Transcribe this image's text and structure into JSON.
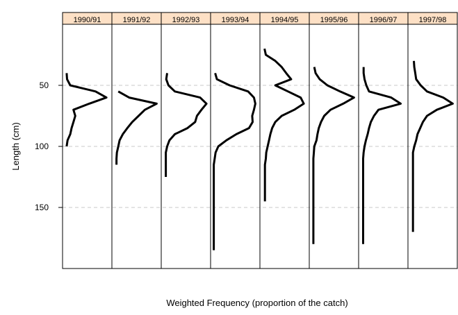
{
  "chart_data": {
    "type": "line",
    "x_label": "Weighted Frequency (proportion of the catch)",
    "y_label": "Length (cm)",
    "y_reversed": true,
    "ylim": [
      0,
      200
    ],
    "yticks": [
      50,
      100,
      150
    ],
    "xlim": [
      0,
      0.1
    ],
    "grid": true,
    "color": "#000000",
    "strip_color": "#fde0c5",
    "lengths": [
      20,
      25,
      30,
      35,
      40,
      45,
      50,
      55,
      60,
      65,
      70,
      75,
      80,
      85,
      90,
      95,
      100,
      105,
      110,
      115,
      120,
      125,
      130,
      135,
      140,
      145,
      150,
      155,
      160,
      165,
      170,
      175,
      180,
      185
    ],
    "panels": [
      {
        "name": "1990/91",
        "values": [
          null,
          null,
          null,
          null,
          0.006,
          0.007,
          0.014,
          0.07,
          0.094,
          0.056,
          0.021,
          0.025,
          0.021,
          0.017,
          0.014,
          0.008,
          0.006,
          null,
          null,
          null,
          null,
          null,
          null,
          null,
          null,
          null,
          null,
          null,
          null,
          null,
          null,
          null,
          null,
          null
        ]
      },
      {
        "name": "1991/92",
        "values": [
          null,
          null,
          null,
          null,
          null,
          null,
          null,
          0.011,
          0.035,
          0.096,
          0.07,
          0.056,
          0.042,
          0.031,
          0.021,
          0.014,
          0.011,
          0.008,
          0.007,
          0.007,
          null,
          null,
          null,
          null,
          null,
          null,
          null,
          null,
          null,
          null,
          null,
          null,
          null,
          null
        ]
      },
      {
        "name": "1992/93",
        "values": [
          null,
          null,
          null,
          null,
          0.01,
          0.008,
          0.013,
          0.027,
          0.083,
          0.097,
          0.086,
          0.076,
          0.072,
          0.055,
          0.027,
          0.015,
          0.01,
          0.007,
          0.007,
          0.007,
          0.007,
          0.007,
          null,
          null,
          null,
          null,
          null,
          null,
          null,
          null,
          null,
          null,
          null,
          null
        ]
      },
      {
        "name": "1993/94",
        "values": [
          null,
          null,
          null,
          null,
          0.007,
          0.011,
          0.039,
          0.08,
          0.093,
          0.096,
          0.093,
          0.089,
          0.09,
          0.082,
          0.054,
          0.032,
          0.014,
          0.008,
          0.006,
          0.004,
          0.004,
          0.004,
          0.004,
          0.004,
          0.004,
          0.004,
          0.004,
          0.004,
          0.004,
          0.004,
          0.004,
          0.004,
          0.004,
          0.004
        ]
      },
      {
        "name": "1994/95",
        "values": [
          0.007,
          0.01,
          0.031,
          0.045,
          0.055,
          0.066,
          0.031,
          0.059,
          0.087,
          0.094,
          0.073,
          0.045,
          0.031,
          0.024,
          0.02,
          0.017,
          0.014,
          0.011,
          0.01,
          0.008,
          0.008,
          0.008,
          0.008,
          0.008,
          0.008,
          0.008,
          null,
          null,
          null,
          null,
          null,
          null,
          null,
          null
        ]
      },
      {
        "name": "1995/96",
        "values": [
          null,
          null,
          null,
          0.008,
          0.011,
          0.02,
          0.037,
          0.065,
          0.096,
          0.072,
          0.044,
          0.03,
          0.023,
          0.018,
          0.015,
          0.013,
          0.008,
          0.007,
          0.006,
          0.006,
          0.006,
          0.006,
          0.006,
          0.006,
          0.006,
          0.006,
          0.006,
          0.006,
          0.006,
          0.006,
          0.006,
          0.006,
          0.006,
          null
        ]
      },
      {
        "name": "1996/97",
        "values": [
          null,
          null,
          null,
          0.008,
          0.008,
          0.01,
          0.014,
          0.02,
          0.069,
          0.09,
          0.041,
          0.031,
          0.024,
          0.02,
          0.017,
          0.013,
          0.01,
          0.008,
          0.007,
          0.007,
          0.007,
          0.007,
          0.007,
          0.007,
          0.007,
          0.007,
          0.007,
          0.007,
          0.007,
          0.007,
          0.007,
          0.007,
          0.007,
          null
        ]
      },
      {
        "name": "1997/98",
        "values": [
          null,
          null,
          0.01,
          0.011,
          0.013,
          0.015,
          0.025,
          0.039,
          0.075,
          0.096,
          0.061,
          0.039,
          0.03,
          0.024,
          0.018,
          0.015,
          0.011,
          0.008,
          0.008,
          0.008,
          0.008,
          0.008,
          0.008,
          0.008,
          0.008,
          0.008,
          0.008,
          0.008,
          0.008,
          0.008,
          0.008,
          null,
          null,
          null
        ]
      }
    ]
  }
}
